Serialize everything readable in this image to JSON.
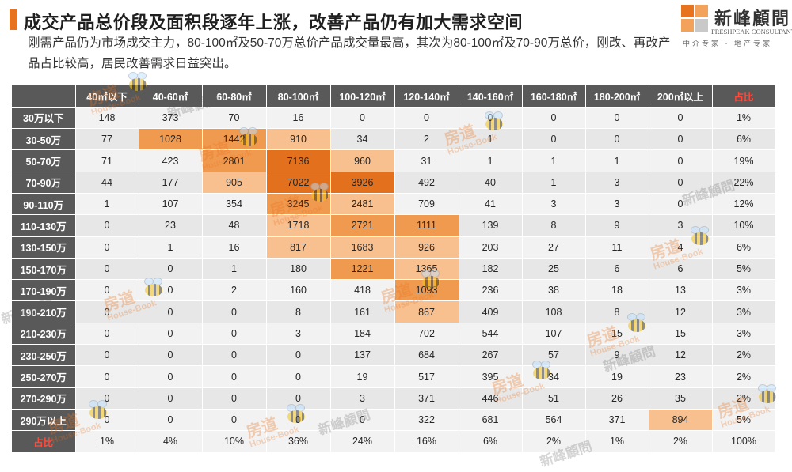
{
  "header": {
    "title": "成交产品总价段及面积段逐年上涨，改善产品仍有加大需求空间",
    "subtitle": "刚需产品仍为市场成交主力，80-100㎡及50-70万总价产品成交量最高，其次为80-100㎡及70-90万总价，刚改、再改产品占比较高，居民改善需求日益突出。"
  },
  "logo": {
    "name": "新峰顧問",
    "english": "FRESHPEAK CONSULTANT",
    "tagline": "中介专家 · 地产专家"
  },
  "watermark": {
    "brand_cn": "房道",
    "brand_en": "House-Book",
    "company": "新峰顧問"
  },
  "colors": {
    "accent": "#e8731f",
    "header_bg": "#595959",
    "heat_low": "#f8bf8f",
    "heat_mid": "#f09a50",
    "heat_high": "#e2701c",
    "share_label": "#ff4a3a"
  },
  "table": {
    "columns": [
      "40㎡以下",
      "40-60㎡",
      "60-80㎡",
      "80-100㎡",
      "100-120㎡",
      "120-140㎡",
      "140-160㎡",
      "160-180㎡",
      "180-200㎡",
      "200㎡以上",
      "占比"
    ],
    "rows": [
      {
        "label": "30万以下",
        "cells": [
          "148",
          "373",
          "70",
          "16",
          "0",
          "0",
          "0",
          "0",
          "0",
          "0",
          "1%"
        ]
      },
      {
        "label": "30-50万",
        "cells": [
          "77",
          "1028",
          "1442",
          "910",
          "34",
          "2",
          "1",
          "0",
          "0",
          "0",
          "6%"
        ]
      },
      {
        "label": "50-70万",
        "cells": [
          "71",
          "423",
          "2801",
          "7136",
          "960",
          "31",
          "1",
          "1",
          "1",
          "0",
          "19%"
        ]
      },
      {
        "label": "70-90万",
        "cells": [
          "44",
          "177",
          "905",
          "7022",
          "3926",
          "492",
          "40",
          "1",
          "3",
          "0",
          "22%"
        ]
      },
      {
        "label": "90-110万",
        "cells": [
          "1",
          "107",
          "354",
          "3245",
          "2481",
          "709",
          "41",
          "3",
          "3",
          "0",
          "12%"
        ]
      },
      {
        "label": "110-130万",
        "cells": [
          "0",
          "23",
          "48",
          "1718",
          "2721",
          "1111",
          "139",
          "8",
          "9",
          "3",
          "10%"
        ]
      },
      {
        "label": "130-150万",
        "cells": [
          "0",
          "1",
          "16",
          "817",
          "1683",
          "926",
          "203",
          "27",
          "11",
          "4",
          "6%"
        ]
      },
      {
        "label": "150-170万",
        "cells": [
          "0",
          "0",
          "1",
          "180",
          "1221",
          "1365",
          "182",
          "25",
          "6",
          "6",
          "5%"
        ]
      },
      {
        "label": "170-190万",
        "cells": [
          "0",
          "0",
          "2",
          "160",
          "418",
          "1093",
          "236",
          "38",
          "18",
          "13",
          "3%"
        ]
      },
      {
        "label": "190-210万",
        "cells": [
          "0",
          "0",
          "0",
          "8",
          "161",
          "867",
          "409",
          "108",
          "8",
          "12",
          "3%"
        ]
      },
      {
        "label": "210-230万",
        "cells": [
          "0",
          "0",
          "0",
          "3",
          "184",
          "702",
          "544",
          "107",
          "15",
          "15",
          "3%"
        ]
      },
      {
        "label": "230-250万",
        "cells": [
          "0",
          "0",
          "0",
          "0",
          "137",
          "684",
          "267",
          "57",
          "9",
          "12",
          "2%"
        ]
      },
      {
        "label": "250-270万",
        "cells": [
          "0",
          "0",
          "0",
          "0",
          "19",
          "517",
          "395",
          "34",
          "19",
          "23",
          "2%"
        ]
      },
      {
        "label": "270-290万",
        "cells": [
          "0",
          "0",
          "0",
          "0",
          "3",
          "371",
          "446",
          "51",
          "26",
          "35",
          "2%"
        ]
      },
      {
        "label": "290万以上",
        "cells": [
          "0",
          "0",
          "0",
          "0",
          "0",
          "322",
          "681",
          "564",
          "371",
          "894",
          "5%"
        ]
      }
    ],
    "footer": {
      "label": "占比",
      "cells": [
        "1%",
        "4%",
        "10%",
        "36%",
        "24%",
        "16%",
        "6%",
        "2%",
        "1%",
        "2%",
        "100%"
      ]
    },
    "heat": {
      "1.1": "h2",
      "1.2": "h2",
      "1.3": "h1",
      "2.2": "h2",
      "2.3": "h3",
      "2.4": "h1",
      "3.2": "h1",
      "3.3": "h3",
      "3.4": "h3",
      "4.3": "h2",
      "4.4": "h1",
      "5.3": "h1",
      "5.4": "h2",
      "5.5": "h2",
      "6.3": "h1",
      "6.4": "h1",
      "6.5": "h1",
      "7.4": "h2",
      "7.5": "h1",
      "8.5": "h2",
      "9.5": "h1",
      "14.9": "h1"
    }
  }
}
